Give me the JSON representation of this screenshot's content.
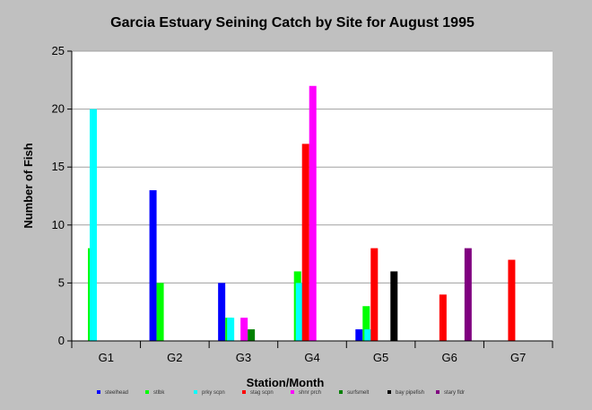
{
  "chart_data": {
    "type": "bar",
    "title": "Garcia Estuary Seining Catch by Site for August 1995",
    "xlabel": "Station/Month",
    "ylabel": "Number of Fish",
    "ylim": [
      0,
      25
    ],
    "yticks": [
      0,
      5,
      10,
      15,
      20,
      25
    ],
    "grid": true,
    "legend_position": "bottom",
    "categories": [
      "G1",
      "G2",
      "G3",
      "G4",
      "G5",
      "G6",
      "G7"
    ],
    "series": [
      {
        "name": "steelhead",
        "color": "#0000ff",
        "values": [
          0,
          13,
          5,
          0,
          1,
          0,
          0
        ]
      },
      {
        "name": "stlbk",
        "color": "#00ff00",
        "values": [
          8,
          5,
          2,
          6,
          3,
          0,
          0
        ]
      },
      {
        "name": "prky scpn",
        "color": "#00ffff",
        "values": [
          20,
          0,
          2,
          5,
          1,
          0,
          0
        ]
      },
      {
        "name": "stag scpn",
        "color": "#ff0000",
        "values": [
          0,
          0,
          0,
          17,
          8,
          4,
          7
        ]
      },
      {
        "name": "shnr prch",
        "color": "#ff00ff",
        "values": [
          0,
          0,
          2,
          22,
          0,
          0,
          0
        ]
      },
      {
        "name": "surfsmelt",
        "color": "#008000",
        "values": [
          0,
          0,
          1,
          0,
          0,
          0,
          0
        ]
      },
      {
        "name": "bay pipefish",
        "color": "#000000",
        "values": [
          0,
          0,
          0,
          0,
          6,
          0,
          0
        ]
      },
      {
        "name": "stary fldr",
        "color": "#800080",
        "values": [
          0,
          0,
          0,
          0,
          0,
          8,
          0
        ]
      }
    ]
  }
}
